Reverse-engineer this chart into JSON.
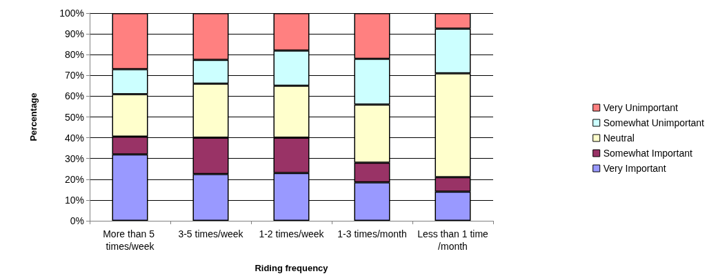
{
  "chart_data": {
    "type": "bar",
    "stacked": true,
    "xlabel": "Riding frequency",
    "ylabel": "Percentage",
    "categories": [
      "More than 5 times/week",
      "3-5 times/week",
      "1-2 times/week",
      "1-3 times/month",
      "Less than 1 time/month"
    ],
    "series": [
      {
        "name": "Very Important",
        "color": "#9999ff",
        "values": [
          32,
          22.5,
          23,
          18.5,
          14
        ]
      },
      {
        "name": "Somewhat Important",
        "color": "#993366",
        "values": [
          8.5,
          17.5,
          17,
          9.5,
          7
        ]
      },
      {
        "name": "Neutral",
        "color": "#ffffcc",
        "values": [
          20.5,
          26,
          25,
          28,
          50
        ]
      },
      {
        "name": "Somewhat Unimportant",
        "color": "#ccffff",
        "values": [
          12,
          11.5,
          17,
          22,
          21.5
        ]
      },
      {
        "name": "Very Unimportant",
        "color": "#ff8080",
        "values": [
          27,
          22.5,
          18,
          22,
          7.5
        ]
      }
    ],
    "ylim": [
      0,
      100
    ],
    "yticks": [
      {
        "value": 0,
        "label": "0%"
      },
      {
        "value": 10,
        "label": "10%"
      },
      {
        "value": 20,
        "label": "20%"
      },
      {
        "value": 30,
        "label": "30%"
      },
      {
        "value": 40,
        "label": "40%"
      },
      {
        "value": 50,
        "label": "50%"
      },
      {
        "value": 60,
        "label": "60%"
      },
      {
        "value": 70,
        "label": "70%"
      },
      {
        "value": 80,
        "label": "80%"
      },
      {
        "value": 90,
        "label": "90%"
      },
      {
        "value": 100,
        "label": "100%"
      }
    ],
    "grid": "y",
    "legend": "right"
  }
}
